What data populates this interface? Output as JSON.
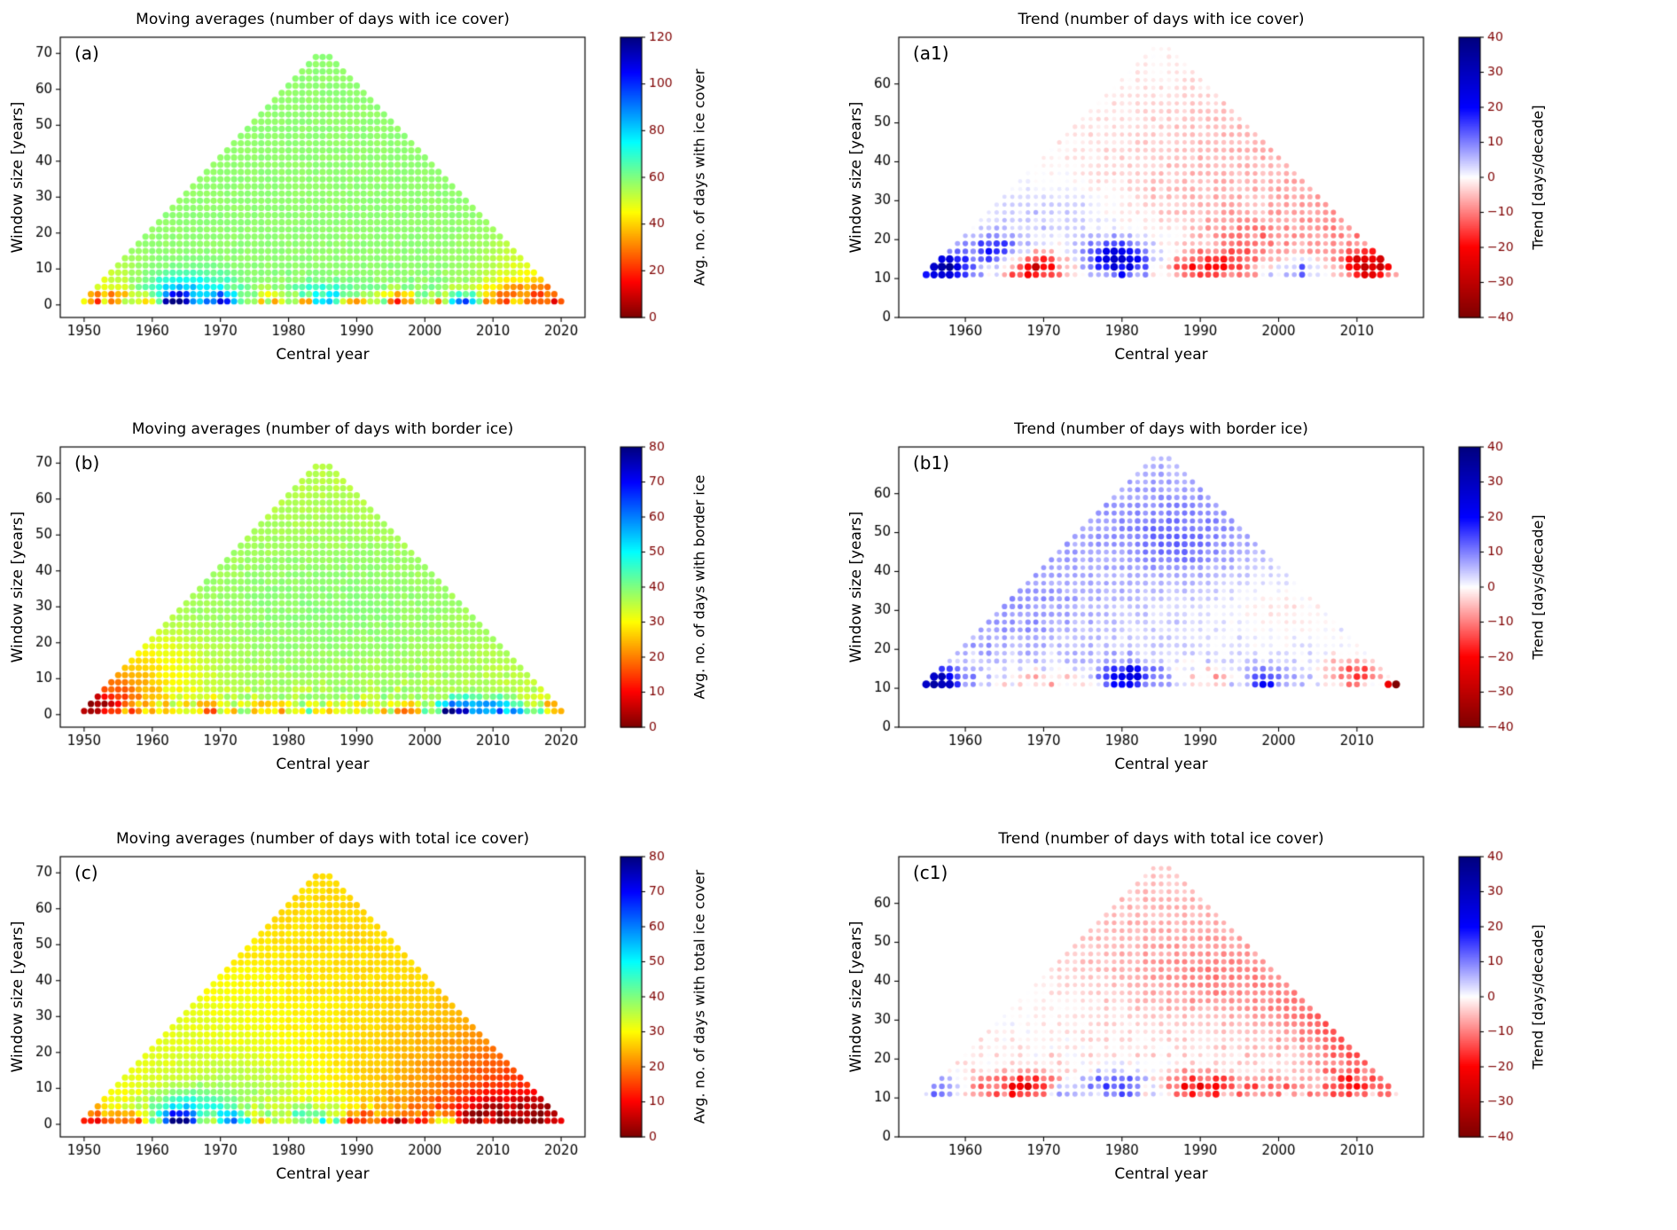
{
  "figure": {
    "background": "#ffffff"
  },
  "chart_data": [
    {
      "panel_label": "(a)",
      "type": "scatter",
      "title": "Moving averages (number of days with ice cover)",
      "xlabel": "Central year",
      "ylabel": "Window size [years]",
      "xlim": [
        1946.5,
        2023.5
      ],
      "ylim": [
        -3.5,
        74.5
      ],
      "xticks": [
        1950,
        1960,
        1970,
        1980,
        1990,
        2000,
        2010,
        2020
      ],
      "yticks": [
        0,
        10,
        20,
        30,
        40,
        50,
        60,
        70
      ],
      "data_years": [
        1950,
        2020
      ],
      "window_sizes": [
        1,
        69
      ],
      "window_step": 2,
      "dot_radius": 3.6,
      "colorbar": {
        "label": "Avg. no. of days with ice cover",
        "min": 0,
        "max": 120,
        "ticks": [
          0,
          20,
          40,
          60,
          80,
          100,
          120
        ],
        "colormap": "jet_r"
      },
      "field": {
        "base": 58,
        "noise": 16,
        "noise_decay": 3.5,
        "noise_floor": 1,
        "bumps": [
          [
            1964.5,
            3,
            5,
            4,
            26
          ],
          [
            1963.5,
            1,
            1.2,
            1.6,
            60
          ],
          [
            1970.5,
            1,
            1.2,
            1.5,
            45
          ],
          [
            1985,
            2,
            3,
            3,
            16
          ],
          [
            1996.5,
            1,
            1.5,
            1.5,
            -38
          ],
          [
            1953,
            1.5,
            2.5,
            2.5,
            -24
          ],
          [
            2006,
            1,
            1.2,
            1.5,
            40
          ],
          [
            2013,
            2,
            4,
            3,
            -26
          ],
          [
            2019,
            2,
            2.5,
            3,
            -20
          ],
          [
            1958,
            1,
            1.5,
            1.5,
            -20
          ],
          [
            1976,
            1,
            2,
            2,
            -15
          ],
          [
            2016,
            10,
            5,
            7,
            -10
          ],
          [
            1955,
            6,
            4,
            5,
            -8
          ],
          [
            1982,
            1,
            1.2,
            1.2,
            -30
          ],
          [
            2002,
            1,
            1,
            1.2,
            -25
          ],
          [
            1990,
            1,
            1,
            1.2,
            -28
          ],
          [
            1960,
            1,
            1,
            1.2,
            -22
          ]
        ]
      }
    },
    {
      "panel_label": "(a1)",
      "type": "scatter",
      "title": "Trend (number of days with ice cover)",
      "xlabel": "Central year",
      "ylabel": "Window size [years]",
      "xlim": [
        1951.5,
        2018.5
      ],
      "ylim": [
        0,
        72
      ],
      "xticks": [
        1960,
        1970,
        1980,
        1990,
        2000,
        2010
      ],
      "yticks": [
        0,
        10,
        20,
        30,
        40,
        50,
        60
      ],
      "data_years": [
        1950,
        2020
      ],
      "window_sizes": [
        11,
        69
      ],
      "window_step": 2,
      "dot_radius": null,
      "colorbar": {
        "label": "Trend [days/decade]",
        "min": -40,
        "max": 40,
        "ticks": [
          -40,
          -30,
          -20,
          -10,
          0,
          10,
          20,
          30,
          40
        ],
        "colormap": "seismic_r"
      },
      "field": {
        "base": 0.5,
        "noise": 6,
        "noise_decay": 10,
        "noise_floor": 1.5,
        "bumps": [
          [
            2002,
            45,
            20,
            16,
            -6
          ],
          [
            2012,
            22,
            8,
            10,
            -8
          ],
          [
            1957,
            13,
            2.2,
            2.6,
            34
          ],
          [
            1969,
            13,
            2.6,
            2.6,
            -28
          ],
          [
            1979.5,
            15,
            3,
            3.5,
            28
          ],
          [
            1964,
            17,
            2.6,
            3,
            18
          ],
          [
            1991,
            13,
            3.5,
            2.6,
            -18
          ],
          [
            2002.5,
            12,
            2,
            2,
            15
          ],
          [
            2011.5,
            13,
            2.4,
            2.8,
            -24
          ],
          [
            1972,
            27,
            7,
            6,
            6
          ],
          [
            1996,
            20,
            4,
            4,
            -8
          ],
          [
            1985,
            30,
            10,
            8,
            -3
          ]
        ]
      }
    },
    {
      "panel_label": "(b)",
      "type": "scatter",
      "title": "Moving averages (number of days with border ice)",
      "xlabel": "Central year",
      "ylabel": "Window size [years]",
      "xlim": [
        1946.5,
        2023.5
      ],
      "ylim": [
        -3.5,
        74.5
      ],
      "xticks": [
        1950,
        1960,
        1970,
        1980,
        1990,
        2000,
        2010,
        2020
      ],
      "yticks": [
        0,
        10,
        20,
        30,
        40,
        50,
        60,
        70
      ],
      "data_years": [
        1950,
        2020
      ],
      "window_sizes": [
        1,
        69
      ],
      "window_step": 2,
      "dot_radius": 3.6,
      "colorbar": {
        "label": "Avg. no. of days with border ice",
        "min": 0,
        "max": 80,
        "ticks": [
          0,
          10,
          20,
          30,
          40,
          50,
          60,
          70,
          80
        ],
        "colormap": "jet_r"
      },
      "field": {
        "base": 35,
        "noise": 10,
        "noise_decay": 4,
        "noise_floor": 1,
        "bumps": [
          [
            1951,
            1.5,
            2.5,
            3,
            -28
          ],
          [
            1954,
            5,
            4,
            6,
            -14
          ],
          [
            1960,
            12,
            6,
            8,
            -7
          ],
          [
            1968,
            1,
            2,
            1.8,
            -14
          ],
          [
            1977,
            1,
            2.5,
            1.8,
            -12
          ],
          [
            1990,
            1,
            2,
            1.5,
            -10
          ],
          [
            2005.5,
            1.5,
            2.5,
            2,
            28
          ],
          [
            2004,
            1,
            0.9,
            1.2,
            38
          ],
          [
            2011,
            1.5,
            2,
            2,
            22
          ],
          [
            2016,
            1,
            1.5,
            1.5,
            15
          ],
          [
            2019.5,
            1.5,
            2,
            2.5,
            -20
          ],
          [
            1985,
            30,
            20,
            18,
            4
          ],
          [
            1997,
            1,
            2,
            1.5,
            -12
          ]
        ]
      }
    },
    {
      "panel_label": "(b1)",
      "type": "scatter",
      "title": "Trend (number of days with border ice)",
      "xlabel": "Central year",
      "ylabel": "Window size [years]",
      "xlim": [
        1951.5,
        2018.5
      ],
      "ylim": [
        0,
        72
      ],
      "xticks": [
        1960,
        1970,
        1980,
        1990,
        2000,
        2010
      ],
      "yticks": [
        0,
        10,
        20,
        30,
        40,
        50,
        60
      ],
      "data_years": [
        1950,
        2020
      ],
      "window_sizes": [
        11,
        69
      ],
      "window_step": 2,
      "dot_radius": null,
      "colorbar": {
        "label": "Trend [days/decade]",
        "min": -40,
        "max": 40,
        "ticks": [
          -40,
          -30,
          -20,
          -10,
          0,
          10,
          20,
          30,
          40
        ],
        "colormap": "seismic_r"
      },
      "field": {
        "base": 3,
        "noise": 5.5,
        "noise_decay": 10,
        "noise_floor": 1.5,
        "bumps": [
          [
            1984,
            55,
            18,
            12,
            5
          ],
          [
            1965,
            30,
            9,
            10,
            5
          ],
          [
            1956.5,
            12,
            2.2,
            2.2,
            30
          ],
          [
            1980.5,
            13,
            2.6,
            2.6,
            22
          ],
          [
            1998,
            12,
            2,
            2,
            16
          ],
          [
            1970,
            12,
            4.5,
            2.2,
            -9
          ],
          [
            2009.5,
            14,
            2.6,
            2.8,
            -18
          ],
          [
            2015,
            11,
            0.8,
            1,
            -40
          ],
          [
            1987,
            47,
            4,
            6,
            5
          ],
          [
            1992,
            13,
            2.5,
            2,
            -8
          ],
          [
            2001,
            30,
            6,
            6,
            -5
          ]
        ]
      }
    },
    {
      "panel_label": "(c)",
      "type": "scatter",
      "title": "Moving averages (number of days with total ice cover)",
      "xlabel": "Central year",
      "ylabel": "Window size [years]",
      "xlim": [
        1946.5,
        2023.5
      ],
      "ylim": [
        -3.5,
        74.5
      ],
      "xticks": [
        1950,
        1960,
        1970,
        1980,
        1990,
        2000,
        2010,
        2020
      ],
      "yticks": [
        0,
        10,
        20,
        30,
        40,
        50,
        60,
        70
      ],
      "data_years": [
        1950,
        2020
      ],
      "window_sizes": [
        1,
        69
      ],
      "window_step": 2,
      "dot_radius": 3.6,
      "colorbar": {
        "label": "Avg. no. of days with total ice cover",
        "min": 0,
        "max": 80,
        "ticks": [
          0,
          10,
          20,
          30,
          40,
          50,
          60,
          70,
          80
        ],
        "colormap": "jet_r"
      },
      "field": {
        "base": 27,
        "noise": 10,
        "noise_decay": 4,
        "noise_floor": 1,
        "bumps": [
          [
            2015,
            8,
            12,
            14,
            -13
          ],
          [
            2010,
            2,
            6,
            4,
            -14
          ],
          [
            2019,
            3,
            3,
            4,
            -10
          ],
          [
            1963.5,
            1,
            1.3,
            1.6,
            42
          ],
          [
            1965,
            3,
            4,
            4,
            20
          ],
          [
            1972,
            1,
            1.2,
            1.5,
            32
          ],
          [
            1983.5,
            1.5,
            3,
            2.5,
            14
          ],
          [
            1990.5,
            1,
            1.3,
            1.5,
            -20
          ],
          [
            1957,
            1,
            1.5,
            1.5,
            -16
          ],
          [
            1996,
            1,
            1.5,
            1.5,
            -14
          ],
          [
            1974,
            8,
            8,
            7,
            7
          ],
          [
            1962,
            25,
            16,
            18,
            5
          ],
          [
            2003,
            1,
            1.2,
            1.5,
            20
          ],
          [
            1951,
            1.5,
            2,
            2.5,
            -16
          ]
        ]
      }
    },
    {
      "panel_label": "(c1)",
      "type": "scatter",
      "title": "Trend (number of days with total ice cover)",
      "xlabel": "Central year",
      "ylabel": "Window size [years]",
      "xlim": [
        1951.5,
        2018.5
      ],
      "ylim": [
        0,
        72
      ],
      "xticks": [
        1960,
        1970,
        1980,
        1990,
        2000,
        2010
      ],
      "yticks": [
        0,
        10,
        20,
        30,
        40,
        50,
        60
      ],
      "data_years": [
        1950,
        2020
      ],
      "window_sizes": [
        11,
        69
      ],
      "window_step": 2,
      "dot_radius": null,
      "colorbar": {
        "label": "Trend [days/decade]",
        "min": -40,
        "max": 40,
        "ticks": [
          -40,
          -30,
          -20,
          -10,
          0,
          10,
          20,
          30,
          40
        ],
        "colormap": "seismic_r"
      },
      "field": {
        "base": -2,
        "noise": 6.5,
        "noise_decay": 10,
        "noise_floor": 1.5,
        "bumps": [
          [
            1987,
            56,
            16,
            11,
            -4
          ],
          [
            1992,
            40,
            9,
            7,
            -6
          ],
          [
            2007,
            32,
            7,
            7,
            -8
          ],
          [
            2011,
            22,
            5,
            6,
            -9
          ],
          [
            1957,
            13,
            2,
            2,
            15
          ],
          [
            1968,
            13,
            2.8,
            2.4,
            -20
          ],
          [
            1979.5,
            13.5,
            3,
            2.5,
            18
          ],
          [
            1990,
            13,
            3.5,
            2.4,
            -18
          ],
          [
            1972.5,
            12,
            1.5,
            1.5,
            13
          ],
          [
            2009,
            13,
            3,
            2.5,
            -12
          ],
          [
            1962,
            13,
            2,
            2,
            -10
          ],
          [
            1999,
            12.5,
            2.5,
            2,
            -8
          ],
          [
            1963,
            35,
            8,
            8,
            2
          ]
        ]
      }
    }
  ]
}
